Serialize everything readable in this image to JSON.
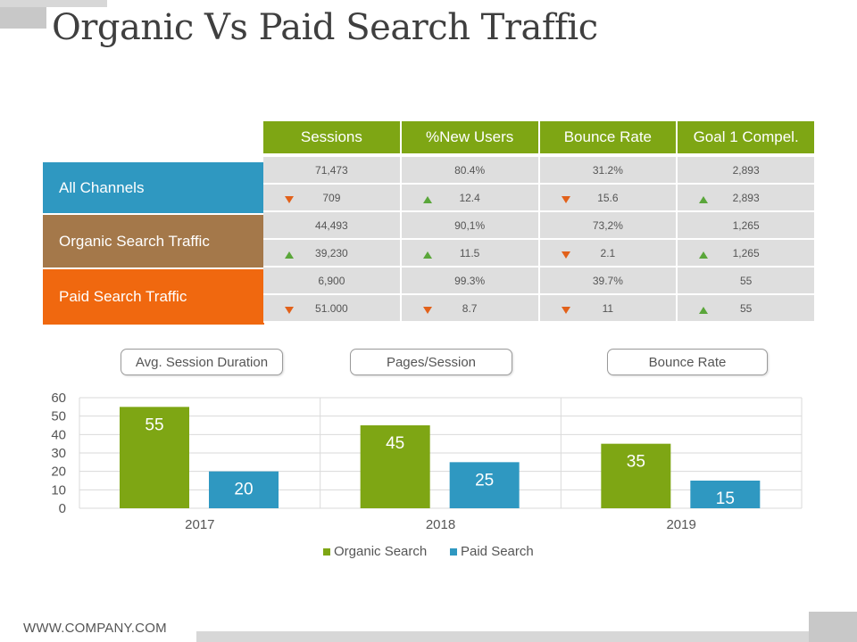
{
  "title": "Organic Vs Paid Search Traffic",
  "footer": "WWW.COMPANY.COM",
  "colors": {
    "organic": "#7ea614",
    "paid": "#2f98c1",
    "accent_green": "#7ea614",
    "down_arrow": "#e2611a",
    "up_arrow": "#5aa63a"
  },
  "table": {
    "headers": [
      "Sessions",
      "%New Users",
      "Bounce Rate",
      "Goal 1 Compel."
    ],
    "channels": [
      "All Channels",
      "Organic Search Traffic",
      "Paid Search Traffic"
    ],
    "rows": [
      [
        {
          "v": "71,473"
        },
        {
          "v": "80.4%"
        },
        {
          "v": "31.2%"
        },
        {
          "v": "2,893"
        }
      ],
      [
        {
          "v": "709",
          "a": "down"
        },
        {
          "v": "12.4",
          "a": "up"
        },
        {
          "v": "15.6",
          "a": "down"
        },
        {
          "v": "2,893",
          "a": "up"
        }
      ],
      [
        {
          "v": "44,493"
        },
        {
          "v": "90,1%"
        },
        {
          "v": "73,2%"
        },
        {
          "v": "1,265"
        }
      ],
      [
        {
          "v": "39,230",
          "a": "up"
        },
        {
          "v": "11.5",
          "a": "up"
        },
        {
          "v": "2.1",
          "a": "down"
        },
        {
          "v": "1,265",
          "a": "up"
        }
      ],
      [
        {
          "v": "6,900"
        },
        {
          "v": "99.3%"
        },
        {
          "v": "39.7%"
        },
        {
          "v": "55"
        }
      ],
      [
        {
          "v": "51.000",
          "a": "down"
        },
        {
          "v": "8.7",
          "a": "down"
        },
        {
          "v": "11",
          "a": "down"
        },
        {
          "v": "55",
          "a": "up"
        }
      ]
    ]
  },
  "pills": [
    "Avg. Session Duration",
    "Pages/Session",
    "Bounce Rate"
  ],
  "chart_data": {
    "type": "bar",
    "title": "",
    "xlabel": "",
    "ylabel": "",
    "categories": [
      "2017",
      "2018",
      "2019"
    ],
    "series": [
      {
        "name": "Organic Search",
        "values": [
          55,
          45,
          35
        ],
        "color": "#7ea614"
      },
      {
        "name": "Paid Search",
        "values": [
          20,
          25,
          15
        ],
        "color": "#2f98c1"
      }
    ],
    "ylim": [
      0,
      60
    ],
    "yticks": [
      0,
      10,
      20,
      30,
      40,
      50,
      60
    ],
    "grid": true,
    "data_labels": true,
    "legend": "bottom"
  }
}
